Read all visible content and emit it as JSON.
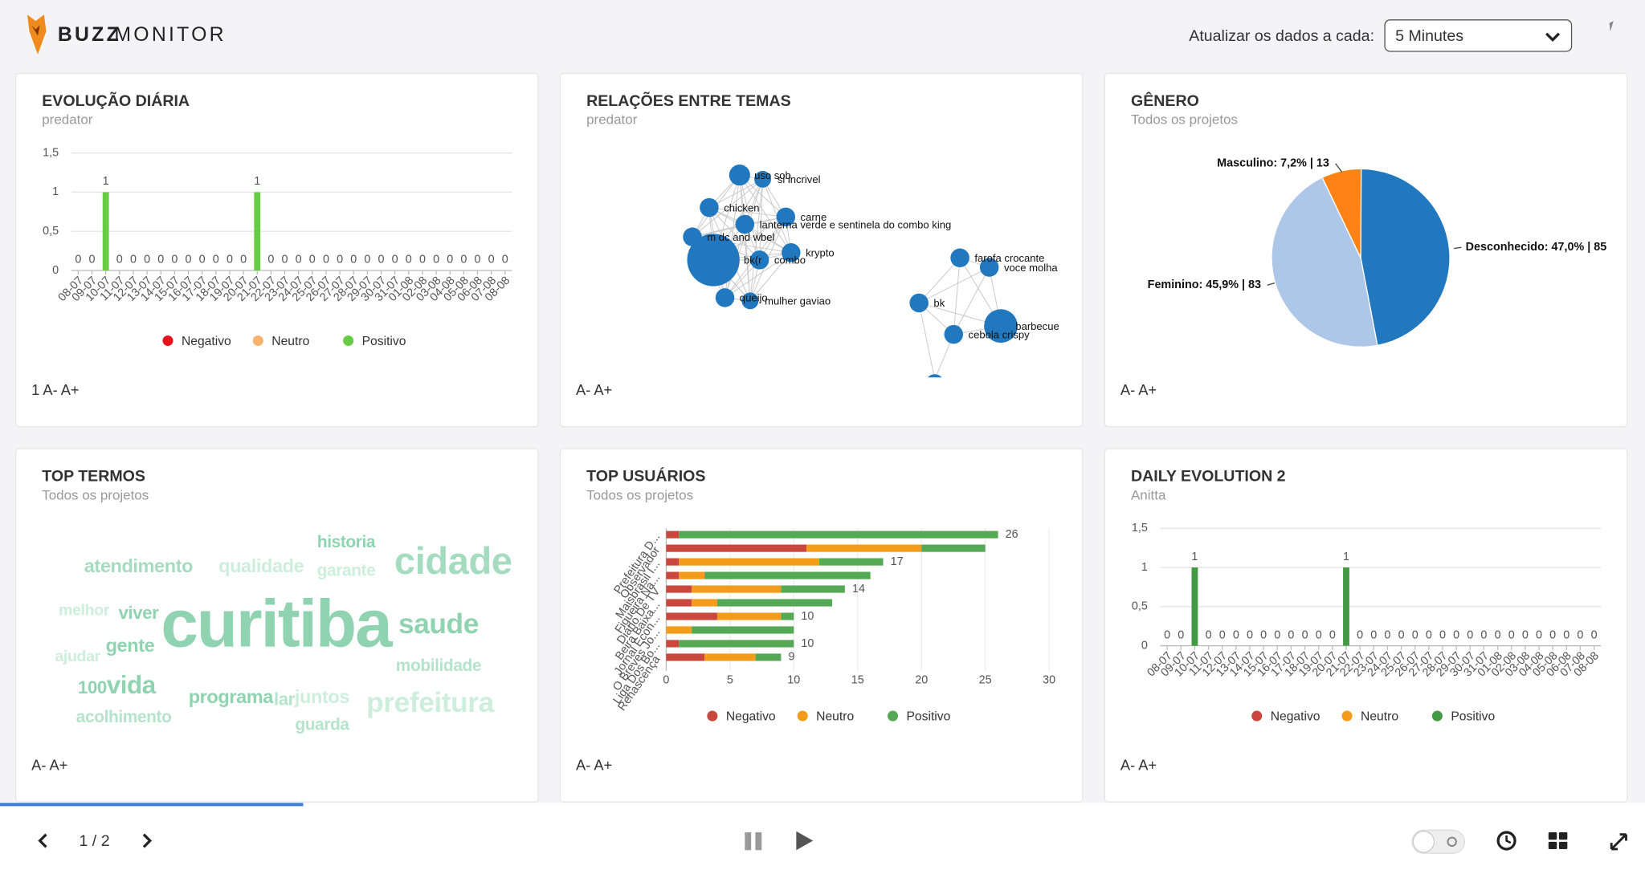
{
  "header": {
    "logo_bold": "BUZZ",
    "logo_light": "MONITOR",
    "refresh_label": "Atualizar os dados a cada:",
    "refresh_value": "5 Minutes"
  },
  "panels": [
    {
      "title": "EVOLUÇÃO DIÁRIA",
      "subtitle": "predator",
      "footer": "1 A- A+",
      "chart": {
        "type": "bar",
        "categories": [
          "08-07",
          "09-07",
          "10-07",
          "11-07",
          "12-07",
          "13-07",
          "14-07",
          "15-07",
          "16-07",
          "17-07",
          "18-07",
          "19-07",
          "20-07",
          "21-07",
          "22-07",
          "23-07",
          "24-07",
          "25-07",
          "26-07",
          "27-07",
          "28-07",
          "29-07",
          "30-07",
          "31-07",
          "01-08",
          "02-08",
          "03-08",
          "04-08",
          "05-08",
          "06-08",
          "07-08",
          "08-08"
        ],
        "series": [
          {
            "name": "Negativo",
            "color": "#e3141b",
            "values": [
              0,
              0,
              0,
              0,
              0,
              0,
              0,
              0,
              0,
              0,
              0,
              0,
              0,
              0,
              0,
              0,
              0,
              0,
              0,
              0,
              0,
              0,
              0,
              0,
              0,
              0,
              0,
              0,
              0,
              0,
              0,
              0
            ]
          },
          {
            "name": "Neutro",
            "color": "#f9b36d",
            "values": [
              0,
              0,
              0,
              0,
              0,
              0,
              0,
              0,
              0,
              0,
              0,
              0,
              0,
              0,
              0,
              0,
              0,
              0,
              0,
              0,
              0,
              0,
              0,
              0,
              0,
              0,
              0,
              0,
              0,
              0,
              0,
              0
            ]
          },
          {
            "name": "Positivo",
            "color": "#66cc44",
            "values": [
              0,
              0,
              1,
              0,
              0,
              0,
              0,
              0,
              0,
              0,
              0,
              0,
              0,
              1,
              0,
              0,
              0,
              0,
              0,
              0,
              0,
              0,
              0,
              0,
              0,
              0,
              0,
              0,
              0,
              0,
              0,
              0
            ]
          }
        ],
        "ylim": [
          0,
          1.5
        ],
        "yticks": [
          0,
          {
            "value": 0.5,
            "label": "0,5"
          },
          1,
          {
            "value": 1.5,
            "label": "1,5"
          }
        ],
        "grid": true,
        "legend": "bottom"
      }
    },
    {
      "title": "RELAÇÕES ENTRE TEMAS",
      "subtitle": "predator",
      "footer": "A- A+",
      "chart": {
        "type": "network",
        "nodes": [
          "uso sob",
          "si incrivel",
          "chicken",
          "carne",
          "lanterna verde e sentinela do combo king",
          "m dc and wbel",
          "bk(r",
          "combo",
          "krypto",
          "queijo",
          "mulher gaviao",
          "farofa crocante",
          "voce molha",
          "bk",
          "barbecue",
          "cebola crispy"
        ],
        "color": "#2278be"
      }
    },
    {
      "title": "GÊNERO",
      "subtitle": "Todos os projetos",
      "footer": "A- A+",
      "chart": {
        "type": "pie",
        "categories": [
          "Desconhecido",
          "Feminino",
          "Masculino"
        ],
        "values": [
          47.0,
          45.9,
          7.2
        ],
        "value_labels": [
          "Desconhecido: 47,0% | 85",
          "Feminino: 45,9% | 83",
          "Masculino: 7,2% | 13"
        ],
        "colors": [
          "#2278be",
          "#aec7e8",
          "#ff8214"
        ]
      }
    },
    {
      "title": "TOP TERMOS",
      "subtitle": "Todos os projetos",
      "footer": "A- A+",
      "chart": {
        "type": "wordcloud",
        "words": [
          "historia",
          "atendimento",
          "qualidade",
          "garante",
          "cidade",
          "melhor",
          "viver",
          "curitiba",
          "saude",
          "gente",
          "ajudar",
          "mobilidade",
          "100",
          "vida",
          "programa",
          "lar",
          "juntos",
          "prefeitura",
          "acolhimento",
          "guarda"
        ]
      }
    },
    {
      "title": "TOP USUÁRIOS",
      "subtitle": "Todos os projetos",
      "footer": "A- A+",
      "chart": {
        "type": "hbar",
        "categories": [
          "Prefeitura D...",
          "Observador",
          "Maisbrasil I...",
          "Figueira Na...",
          "Diário De TV",
          "Beira Baixa...",
          "Jornal Econ...",
          "O Breves Jo...",
          "Liga Dos Bo...",
          "Renascença"
        ],
        "series": [
          {
            "name": "Negativo",
            "color": "#c9473d",
            "values": [
              1,
              11,
              1,
              1,
              2,
              2,
              4,
              0,
              1,
              3
            ]
          },
          {
            "name": "Neutro",
            "color": "#f39c1a",
            "values": [
              0,
              9,
              11,
              2,
              7,
              2,
              5,
              2,
              0,
              4
            ]
          },
          {
            "name": "Positivo",
            "color": "#55a955",
            "values": [
              25,
              5,
              5,
              13,
              5,
              9,
              1,
              8,
              9,
              2
            ]
          }
        ],
        "totals": [
          26,
          null,
          17,
          null,
          14,
          null,
          10,
          null,
          10,
          9
        ],
        "xlim": [
          0,
          30
        ],
        "xticks": [
          0,
          5,
          10,
          15,
          20,
          25,
          30
        ],
        "grid": true,
        "legend": "bottom"
      }
    },
    {
      "title": "DAILY EVOLUTION 2",
      "subtitle": "Anitta",
      "footer": "A- A+",
      "chart": {
        "type": "bar",
        "categories": [
          "08-07",
          "09-07",
          "10-07",
          "11-07",
          "12-07",
          "13-07",
          "14-07",
          "15-07",
          "16-07",
          "17-07",
          "18-07",
          "19-07",
          "20-07",
          "21-07",
          "22-07",
          "23-07",
          "24-07",
          "25-07",
          "26-07",
          "27-07",
          "28-07",
          "29-07",
          "30-07",
          "31-07",
          "01-08",
          "02-08",
          "03-08",
          "04-08",
          "05-08",
          "06-08",
          "07-08",
          "08-08"
        ],
        "series": [
          {
            "name": "Negativo",
            "color": "#c9473d",
            "values": [
              0,
              0,
              0,
              0,
              0,
              0,
              0,
              0,
              0,
              0,
              0,
              0,
              0,
              0,
              0,
              0,
              0,
              0,
              0,
              0,
              0,
              0,
              0,
              0,
              0,
              0,
              0,
              0,
              0,
              0,
              0,
              0
            ]
          },
          {
            "name": "Neutro",
            "color": "#f39c1a",
            "values": [
              0,
              0,
              0,
              0,
              0,
              0,
              0,
              0,
              0,
              0,
              0,
              0,
              0,
              0,
              0,
              0,
              0,
              0,
              0,
              0,
              0,
              0,
              0,
              0,
              0,
              0,
              0,
              0,
              0,
              0,
              0,
              0
            ]
          },
          {
            "name": "Positivo",
            "color": "#449944",
            "values": [
              0,
              0,
              1,
              0,
              0,
              0,
              0,
              0,
              0,
              0,
              0,
              0,
              0,
              1,
              0,
              0,
              0,
              0,
              0,
              0,
              0,
              0,
              0,
              0,
              0,
              0,
              0,
              0,
              0,
              0,
              0,
              0
            ]
          }
        ],
        "ylim": [
          0,
          1.5
        ],
        "yticks": [
          0,
          {
            "value": 0.5,
            "label": "0,5"
          },
          1,
          {
            "value": 1.5,
            "label": "1,5"
          }
        ],
        "grid": true,
        "legend": "bottom"
      }
    }
  ],
  "pager": {
    "label": "1 / 2"
  }
}
